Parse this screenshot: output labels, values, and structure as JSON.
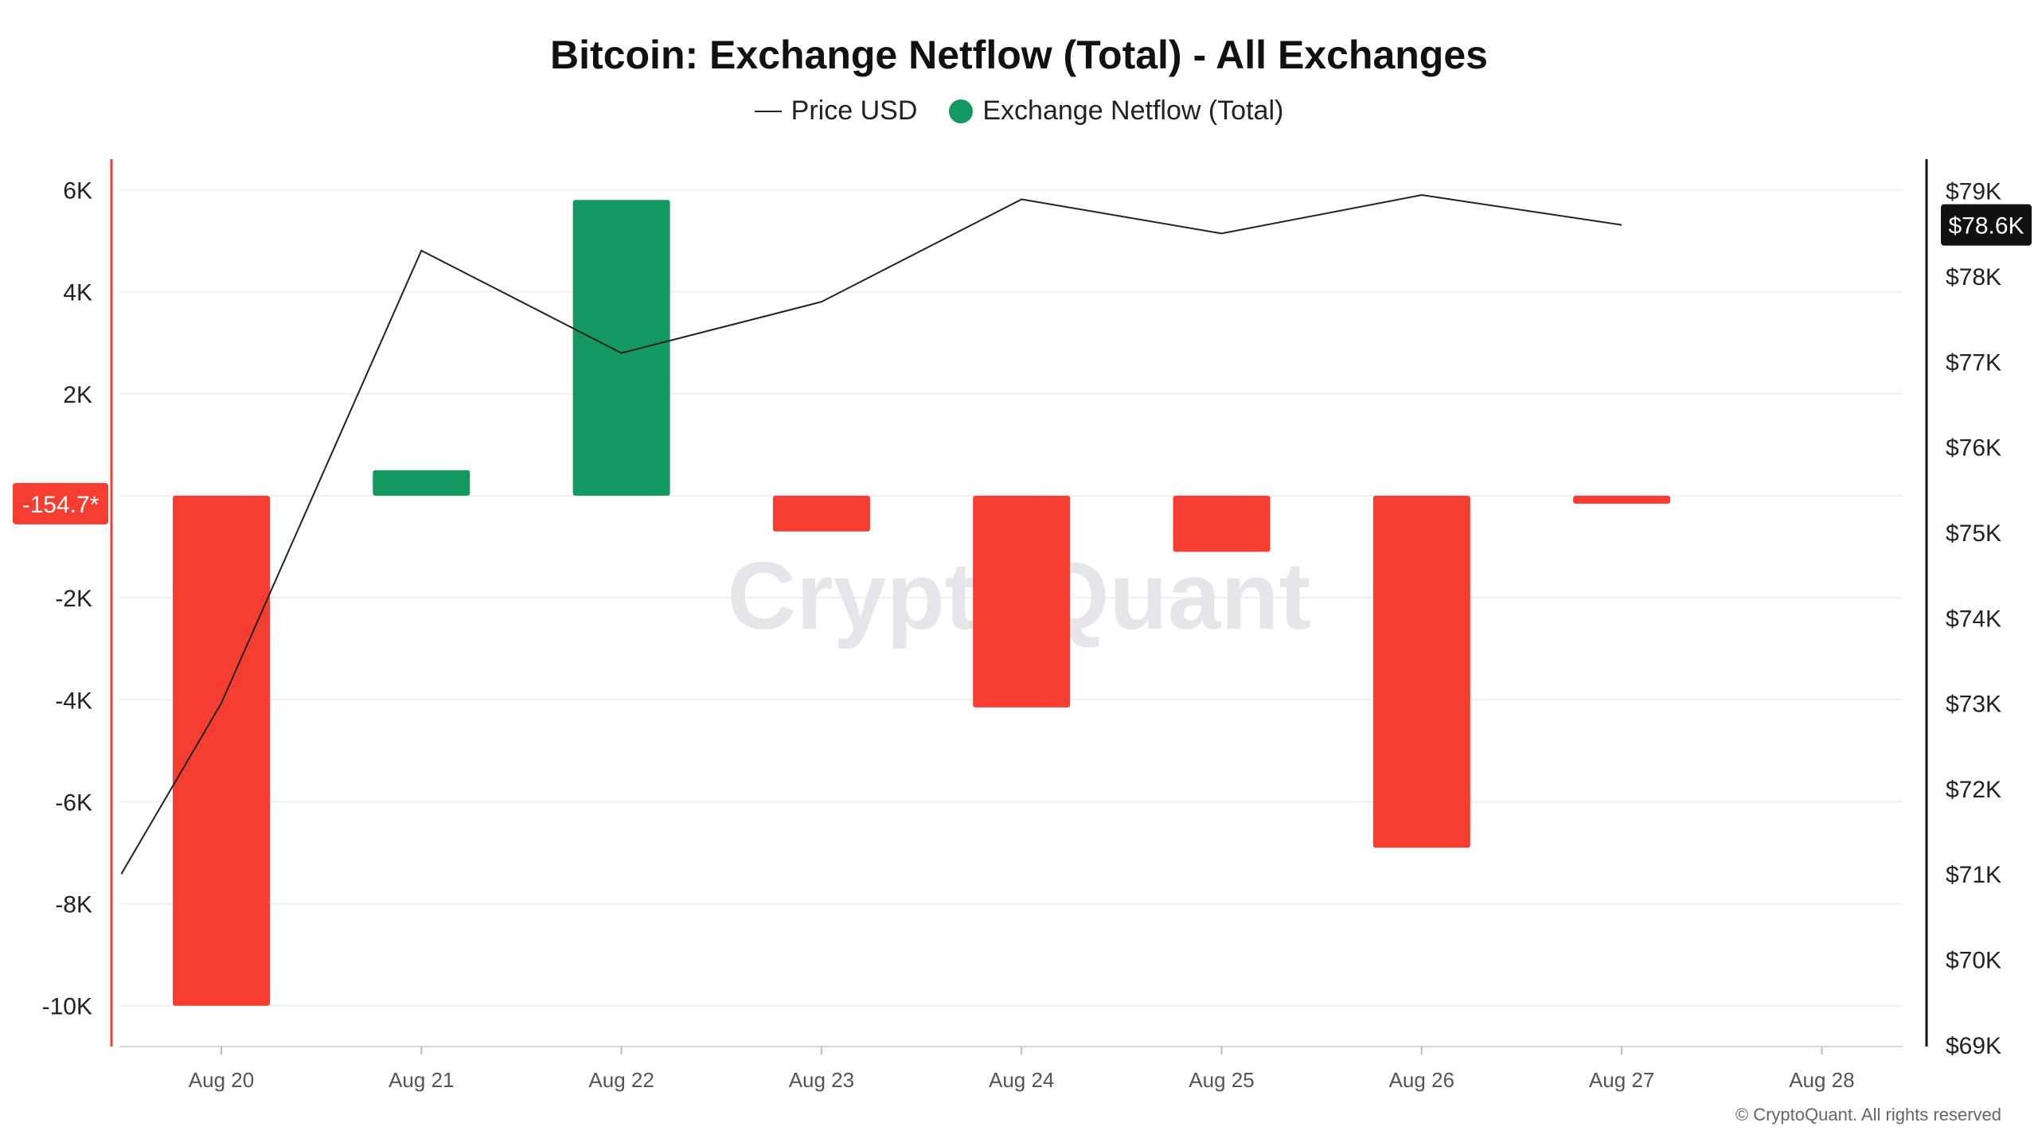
{
  "chart_data": {
    "type": "bar",
    "title": "Bitcoin: Exchange Netflow (Total) - All Exchanges",
    "categories": [
      "Aug 20",
      "Aug 21",
      "Aug 22",
      "Aug 23",
      "Aug 24",
      "Aug 25",
      "Aug 26",
      "Aug 27",
      "Aug 28"
    ],
    "series": [
      {
        "name": "Exchange Netflow (Total)",
        "kind": "bar",
        "axis": "left",
        "values": [
          -10000,
          500,
          5800,
          -700,
          -4150,
          -1100,
          -6900,
          -154.7,
          null
        ]
      },
      {
        "name": "Price USD",
        "kind": "line",
        "axis": "right",
        "points": [
          {
            "x": "Aug 19.5",
            "offset_days": -0.5,
            "y": 71000
          },
          {
            "x": "Aug 20",
            "offset_days": 0,
            "y": 73000
          },
          {
            "x": "Aug 21",
            "offset_days": 1,
            "y": 78300
          },
          {
            "x": "Aug 22",
            "offset_days": 2,
            "y": 77100
          },
          {
            "x": "Aug 23",
            "offset_days": 3,
            "y": 77700
          },
          {
            "x": "Aug 24",
            "offset_days": 4,
            "y": 78900
          },
          {
            "x": "Aug 25",
            "offset_days": 5,
            "y": 78500
          },
          {
            "x": "Aug 26",
            "offset_days": 6,
            "y": 78950
          },
          {
            "x": "Aug 27",
            "offset_days": 7,
            "y": 78600
          }
        ]
      }
    ],
    "left_axis": {
      "ylim": [
        -10800,
        6600
      ],
      "ticks": [
        6000,
        4000,
        2000,
        -2000,
        -4000,
        -6000,
        -8000,
        -10000
      ],
      "tick_labels": [
        "6K",
        "4K",
        "2K",
        "-2K",
        "-4K",
        "-6K",
        "-8K",
        "-10K"
      ]
    },
    "right_axis": {
      "ylim": [
        68980,
        79370
      ],
      "ticks": [
        79000,
        78000,
        77000,
        76000,
        75000,
        74000,
        73000,
        72000,
        71000,
        70000,
        69000
      ],
      "tick_labels": [
        "$79K",
        "$78K",
        "$77K",
        "$76K",
        "$75K",
        "$74K",
        "$73K",
        "$72K",
        "$71K",
        "$70K",
        "$69K"
      ]
    },
    "current_value_left": {
      "label": "-154.7*",
      "value": -154.7
    },
    "current_value_right": {
      "label": "$78.6K",
      "value": 78600
    },
    "grid": true,
    "legend": "top-center",
    "colors": {
      "positive": "#139960",
      "negative": "#f53d32",
      "price_line": "#222222",
      "left_axis": "#f53d32",
      "right_axis": "#111111"
    }
  },
  "legend": {
    "price_label": "Price USD",
    "netflow_label": "Exchange Netflow (Total)"
  },
  "watermark": "CryptoQuant",
  "copyright": "© CryptoQuant. All rights reserved"
}
